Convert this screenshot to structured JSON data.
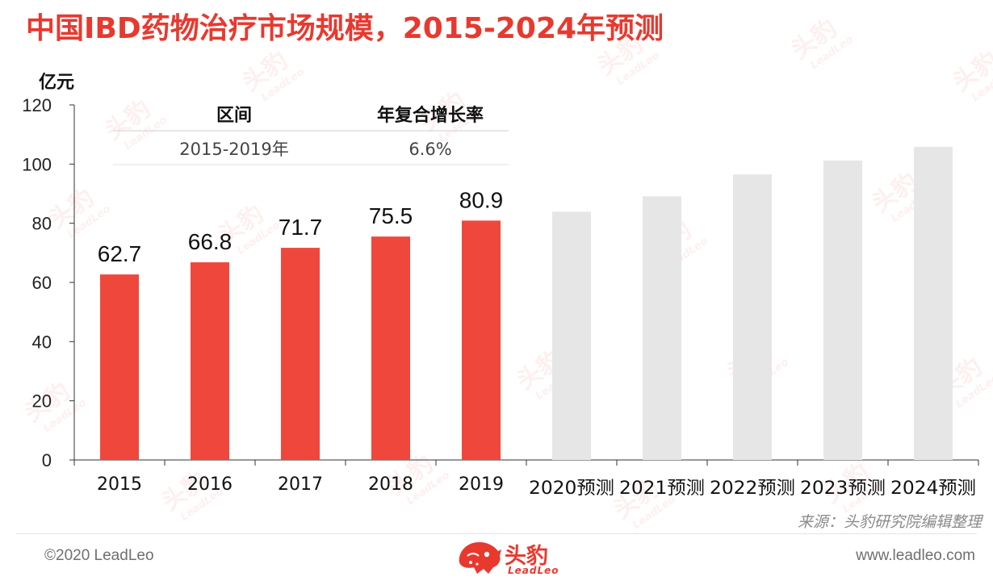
{
  "title": "中国IBD药物治疗市场规模，2015-2024年预测",
  "chart_data": {
    "type": "bar",
    "unit": "亿元",
    "categories": [
      "2015",
      "2016",
      "2017",
      "2018",
      "2019",
      "2020预测",
      "2021预测",
      "2022预测",
      "2023预测",
      "2024预测"
    ],
    "values": [
      62.7,
      66.8,
      71.7,
      75.5,
      80.9,
      83.9,
      89.1,
      96.5,
      101.2,
      105.8
    ],
    "data_labels": [
      "62.7",
      "66.8",
      "71.7",
      "75.5",
      "80.9",
      "",
      "",
      "",
      "",
      ""
    ],
    "bar_colors": [
      "#f0473d",
      "#f0473d",
      "#f0473d",
      "#f0473d",
      "#f0473d",
      "#e6e6e6",
      "#e6e6e6",
      "#e6e6e6",
      "#e6e6e6",
      "#e6e6e6"
    ],
    "y_ticks": [
      0,
      20,
      40,
      60,
      80,
      100,
      120
    ],
    "ylim": [
      0,
      120
    ],
    "grid": false,
    "legend": "none"
  },
  "cagr_table": {
    "headers": [
      "区间",
      "年复合增长率"
    ],
    "rows": [
      [
        "2015-2019年",
        "6.6%"
      ]
    ]
  },
  "source": "来源：头豹研究院编辑整理",
  "footer": {
    "copyright": "©2020 LeadLeo",
    "website": "www.leadleo.com",
    "brand_name": "头豹",
    "brand_en": "LeadLeo"
  },
  "colors": {
    "accent": "#e8392f",
    "actual_bar": "#f0473d",
    "forecast_bar": "#e6e6e6"
  }
}
